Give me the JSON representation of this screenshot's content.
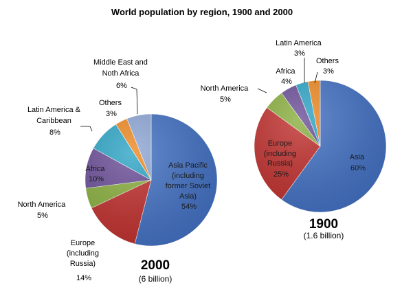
{
  "chart_data": [
    {
      "type": "pie",
      "year_label": "2000",
      "total_label": "(6 billion)",
      "title": "World population by region, 1900  and 2000",
      "slices": [
        {
          "label": [
            "Asia Pacific",
            "(including",
            "former Soviet",
            "Asia)"
          ],
          "pct": "54%",
          "value": 54,
          "color": "#4472c4"
        },
        {
          "label": [
            "Europe",
            "(including",
            "Russia)"
          ],
          "pct": "14%",
          "value": 14,
          "color": "#c0312f"
        },
        {
          "label": [
            "North America"
          ],
          "pct": "5%",
          "value": 5,
          "color": "#8aaf3f"
        },
        {
          "label": [
            "Africa"
          ],
          "pct": "10%",
          "value": 10,
          "color": "#6b4f98"
        },
        {
          "label": [
            "Latin America &",
            "Caribbean"
          ],
          "pct": "8%",
          "value": 8,
          "color": "#2ea5c6"
        },
        {
          "label": [
            "Others"
          ],
          "pct": "3%",
          "value": 3,
          "color": "#ef8a24"
        },
        {
          "label": [
            "Middle East  and",
            "Noth Africa"
          ],
          "pct": "6%",
          "value": 6,
          "color": "#8fa8d7"
        }
      ]
    },
    {
      "type": "pie",
      "year_label": "1900",
      "total_label": "(1.6 billion)",
      "slices": [
        {
          "label": [
            "Asia"
          ],
          "pct": "60%",
          "value": 60,
          "color": "#4472c4"
        },
        {
          "label": [
            "Europe",
            "(including",
            "Russia)"
          ],
          "pct": "25%",
          "value": 25,
          "color": "#c0312f"
        },
        {
          "label": [
            "North America"
          ],
          "pct": "5%",
          "value": 5,
          "color": "#8aaf3f"
        },
        {
          "label": [
            "Africa"
          ],
          "pct": "4%",
          "value": 4,
          "color": "#6b4f98"
        },
        {
          "label": [
            "Latin America"
          ],
          "pct": "3%",
          "value": 3,
          "color": "#2ea5c6"
        },
        {
          "label": [
            "Others"
          ],
          "pct": "3%",
          "value": 3,
          "color": "#ef8a24"
        }
      ]
    }
  ]
}
